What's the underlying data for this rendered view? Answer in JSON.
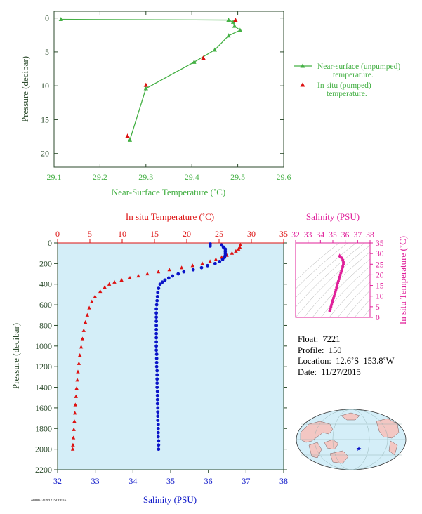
{
  "colors": {
    "green": "#44b044",
    "red": "#dd1111",
    "blue": "#0a14c8",
    "magenta": "#e0209a",
    "axis_dark": "#2b4a2b",
    "plot_bg": "#d4eef8",
    "land": "#f3c7c3",
    "ocean": "#d4eef8"
  },
  "top_chart": {
    "xlabel": "Near-Surface Temperature (˚C)",
    "ylabel": "Pressure (decibar)",
    "xticks": [
      "29.1",
      "29.2",
      "29.3",
      "29.4",
      "29.5",
      "29.6"
    ],
    "yticks": [
      "0",
      "5",
      "10",
      "15",
      "20"
    ],
    "legend": {
      "line1": "Near-surface (unpumped)",
      "line2": "temperature.",
      "line3": "In situ (pumped)",
      "line4": "temperature."
    }
  },
  "main_chart": {
    "top_label": "In situ Temperature (˚C)",
    "bottom_label": "Salinity (PSU)",
    "ylabel": "Pressure (decibar)",
    "temp_ticks": [
      "0",
      "5",
      "10",
      "15",
      "20",
      "25",
      "30",
      "35"
    ],
    "sal_ticks": [
      "32",
      "33",
      "34",
      "35",
      "36",
      "37",
      "38"
    ],
    "pres_ticks": [
      "0",
      "200",
      "400",
      "600",
      "800",
      "1000",
      "1200",
      "1400",
      "1600",
      "1800",
      "2000",
      "2200"
    ]
  },
  "ts_chart": {
    "top_label": "Salinity (PSU)",
    "right_label": "In situ Temperature (˚C)",
    "sal_ticks": [
      "32",
      "33",
      "34",
      "35",
      "36",
      "37",
      "38"
    ],
    "temp_ticks": [
      "0",
      "5",
      "10",
      "15",
      "20",
      "25",
      "30",
      "35"
    ]
  },
  "info": {
    "float": "Float:  7221",
    "profile": "Profile:  150",
    "location": "Location:  12.6˚S  153.8˚W",
    "date": "Date:  11/27/2015"
  },
  "footer_code": "AM003214/LY1500016",
  "chart_data": [
    {
      "type": "line",
      "title": "",
      "xlabel": "Near-Surface Temperature (˚C)",
      "ylabel": "Pressure (decibar)",
      "xlim": [
        29.1,
        29.6
      ],
      "ylim": [
        22,
        -1
      ],
      "series": [
        {
          "name": "Near-surface (unpumped) temperature.",
          "points": [
            [
              29.115,
              0.2
            ],
            [
              29.48,
              0.3
            ],
            [
              29.49,
              0.6
            ],
            [
              29.493,
              1.2
            ],
            [
              29.505,
              1.8
            ],
            [
              29.48,
              2.6
            ],
            [
              29.45,
              4.7
            ],
            [
              29.405,
              6.5
            ],
            [
              29.3,
              10.4
            ],
            [
              29.265,
              18.0
            ]
          ]
        },
        {
          "name": "In situ (pumped) temperature.",
          "points": [
            [
              29.495,
              0.3
            ],
            [
              29.425,
              5.9
            ],
            [
              29.3,
              9.9
            ],
            [
              29.26,
              17.4
            ]
          ]
        }
      ]
    },
    {
      "type": "scatter",
      "title": "",
      "xlabel": "In situ Temperature (˚C)",
      "ylabel": "Pressure (decibar)",
      "xlim": [
        0,
        35
      ],
      "ylim": [
        2200,
        0
      ],
      "series": [
        {
          "name": "In situ Temperature (˚C)",
          "points": [
            [
              28.3,
              20
            ],
            [
              28.2,
              40
            ],
            [
              28.0,
              60
            ],
            [
              27.6,
              80
            ],
            [
              27.0,
              100
            ],
            [
              26.2,
              120
            ],
            [
              25.4,
              140
            ],
            [
              24.5,
              160
            ],
            [
              23.6,
              180
            ],
            [
              22.4,
              200
            ],
            [
              20.9,
              220
            ],
            [
              19.2,
              240
            ],
            [
              17.3,
              260
            ],
            [
              15.6,
              280
            ],
            [
              13.9,
              300
            ],
            [
              12.5,
              320
            ],
            [
              11.2,
              340
            ],
            [
              9.9,
              360
            ],
            [
              8.8,
              380
            ],
            [
              8.0,
              400
            ],
            [
              7.3,
              430
            ],
            [
              6.6,
              470
            ],
            [
              5.8,
              520
            ],
            [
              5.3,
              570
            ],
            [
              4.9,
              630
            ],
            [
              4.6,
              700
            ],
            [
              4.3,
              770
            ],
            [
              4.05,
              850
            ],
            [
              3.85,
              930
            ],
            [
              3.65,
              1010
            ],
            [
              3.45,
              1090
            ],
            [
              3.3,
              1170
            ],
            [
              3.15,
              1250
            ],
            [
              3.05,
              1330
            ],
            [
              2.95,
              1410
            ],
            [
              2.85,
              1490
            ],
            [
              2.75,
              1570
            ],
            [
              2.68,
              1650
            ],
            [
              2.6,
              1730
            ],
            [
              2.52,
              1810
            ],
            [
              2.45,
              1890
            ],
            [
              2.38,
              1960
            ],
            [
              2.35,
              2000
            ]
          ]
        },
        {
          "name": "Salinity (PSU)",
          "points": [
            [
              36.05,
              10
            ],
            [
              36.05,
              30
            ],
            [
              36.35,
              20
            ],
            [
              36.4,
              40
            ],
            [
              36.45,
              60
            ],
            [
              36.45,
              80
            ],
            [
              36.45,
              100
            ],
            [
              36.45,
              120
            ],
            [
              36.43,
              140
            ],
            [
              36.38,
              160
            ],
            [
              36.3,
              180
            ],
            [
              36.18,
              200
            ],
            [
              35.98,
              220
            ],
            [
              35.82,
              240
            ],
            [
              35.6,
              260
            ],
            [
              35.35,
              280
            ],
            [
              35.2,
              300
            ],
            [
              35.05,
              320
            ],
            [
              34.95,
              340
            ],
            [
              34.85,
              360
            ],
            [
              34.78,
              380
            ],
            [
              34.72,
              400
            ],
            [
              34.68,
              440
            ],
            [
              34.66,
              480
            ],
            [
              34.65,
              520
            ],
            [
              34.64,
              560
            ],
            [
              34.63,
              600
            ],
            [
              34.62,
              640
            ],
            [
              34.62,
              680
            ],
            [
              34.62,
              720
            ],
            [
              34.62,
              760
            ],
            [
              34.62,
              800
            ],
            [
              34.62,
              840
            ],
            [
              34.62,
              880
            ],
            [
              34.62,
              920
            ],
            [
              34.62,
              960
            ],
            [
              34.62,
              1000
            ],
            [
              34.62,
              1040
            ],
            [
              34.63,
              1080
            ],
            [
              34.63,
              1120
            ],
            [
              34.63,
              1160
            ],
            [
              34.63,
              1200
            ],
            [
              34.64,
              1240
            ],
            [
              34.64,
              1280
            ],
            [
              34.64,
              1320
            ],
            [
              34.64,
              1360
            ],
            [
              34.64,
              1400
            ],
            [
              34.65,
              1440
            ],
            [
              34.65,
              1480
            ],
            [
              34.65,
              1520
            ],
            [
              34.65,
              1560
            ],
            [
              34.66,
              1600
            ],
            [
              34.66,
              1640
            ],
            [
              34.66,
              1680
            ],
            [
              34.66,
              1720
            ],
            [
              34.67,
              1760
            ],
            [
              34.67,
              1800
            ],
            [
              34.67,
              1840
            ],
            [
              34.67,
              1880
            ],
            [
              34.68,
              1920
            ],
            [
              34.68,
              1960
            ],
            [
              34.68,
              2000
            ]
          ]
        }
      ]
    },
    {
      "type": "scatter",
      "title": "",
      "xlabel": "Salinity (PSU)",
      "ylabel": "In situ Temperature (˚C)",
      "xlim": [
        32,
        38
      ],
      "ylim": [
        0,
        35
      ],
      "series": [
        {
          "name": "T-S",
          "points": [
            [
              35.55,
              29.0
            ],
            [
              35.6,
              28.5
            ],
            [
              35.7,
              28.0
            ],
            [
              35.8,
              27.0
            ],
            [
              35.85,
              26.0
            ],
            [
              35.85,
              25.0
            ],
            [
              35.8,
              24.0
            ],
            [
              35.75,
              23.0
            ],
            [
              35.7,
              22.0
            ],
            [
              35.65,
              21.0
            ],
            [
              35.6,
              20.0
            ],
            [
              35.55,
              19.0
            ],
            [
              35.5,
              18.0
            ],
            [
              35.45,
              17.0
            ],
            [
              35.4,
              16.0
            ],
            [
              35.35,
              15.0
            ],
            [
              35.3,
              14.0
            ],
            [
              35.25,
              13.0
            ],
            [
              35.2,
              12.0
            ],
            [
              35.15,
              11.0
            ],
            [
              35.1,
              10.0
            ],
            [
              35.05,
              9.0
            ],
            [
              35.0,
              8.0
            ],
            [
              34.95,
              7.0
            ],
            [
              34.9,
              6.0
            ],
            [
              34.85,
              5.0
            ],
            [
              34.8,
              4.0
            ],
            [
              34.75,
              3.0
            ]
          ]
        }
      ]
    }
  ]
}
